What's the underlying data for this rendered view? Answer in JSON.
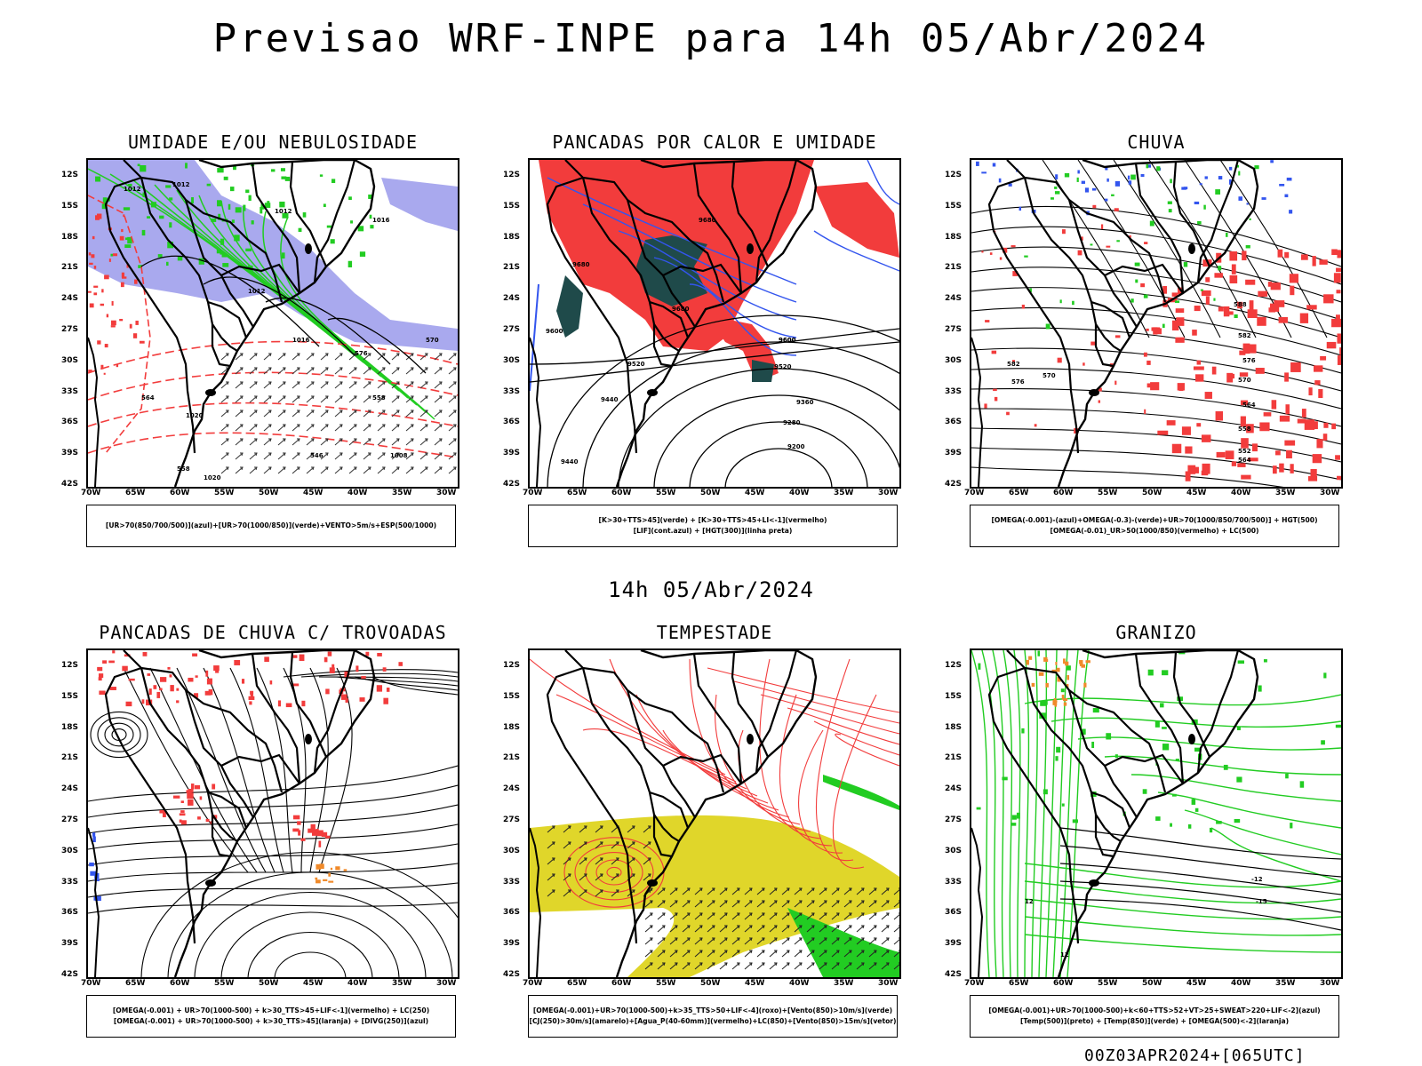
{
  "header": {
    "title": "Previsao WRF-INPE  para 14h 05/Abr/2024",
    "subtitle": "14h 05/Abr/2024",
    "footer": "00Z03APR2024+[065UTC]"
  },
  "axes": {
    "lat_labels": [
      "12S",
      "15S",
      "18S",
      "21S",
      "24S",
      "27S",
      "30S",
      "33S",
      "36S",
      "39S",
      "42S"
    ],
    "lon_labels": [
      "70W",
      "65W",
      "60W",
      "55W",
      "50W",
      "45W",
      "40W",
      "35W",
      "30W"
    ]
  },
  "panels": [
    {
      "title": "UMIDADE E/OU NEBULOSIDADE",
      "legend": [
        "[UR>70(850/700/500)](azul)+[UR>70(1000/850)](verde)+VENTO>5m/s+ESP(500/1000)"
      ],
      "contour_labels": [
        "1012",
        "1012",
        "1012",
        "1016",
        "1012",
        "1016",
        "1020",
        "1020",
        "570",
        "576",
        "564",
        "558",
        "558",
        "546",
        "1008"
      ]
    },
    {
      "title": "PANCADAS POR CALOR E UMIDADE",
      "legend": [
        "[K>30+TTS>45](verde) + [K>30+TTS>45+LI<-1](vermelho)",
        "[LIF](cont.azul) + [HGT(300)](linha preta)"
      ],
      "contour_labels": [
        "9680",
        "9680",
        "9680",
        "9600",
        "9600",
        "9520",
        "9520",
        "9440",
        "9360",
        "9280",
        "9200",
        "9440",
        "9600"
      ]
    },
    {
      "title": "CHUVA",
      "legend": [
        "[OMEGA(-0.001)-(azul)+OMEGA(-0.3)-(verde)+UR>70(1000/850/700/500)] + HGT(500)",
        "[OMEGA(-0.01)_UR>50(1000/850)(vermelho) + LC(500)"
      ],
      "contour_labels": [
        "588",
        "582",
        "576",
        "570",
        "564",
        "558",
        "552",
        "582",
        "576",
        "570",
        "564"
      ]
    },
    {
      "title": "PANCADAS DE CHUVA C/ TROVOADAS",
      "legend": [
        "[OMEGA(-0.001) + UR>70(1000-500) + k>30_TTS>45+LIF<-1](vermelho) + LC(250)",
        "[OMEGA(-0.001) + UR>70(1000-500) + k>30_TTS>45](laranja) + [DIVG(250)](azul)"
      ],
      "contour_labels": []
    },
    {
      "title": "TEMPESTADE",
      "legend": [
        "[OMEGA(-0.001)+UR>70(1000-500)+k>35_TTS>50+LIF<-4](roxo)+[Vento(850)>10m/s](verde)",
        "[CJ(250)>30m/s](amarelo)+[Agua_P(40-60mm)](vermelho)+LC(850)+[Vento(850)>15m/s](vetor)"
      ],
      "contour_labels": []
    },
    {
      "title": "GRANIZO",
      "legend": [
        "[OMEGA(-0.001)+UR>70(1000-500)+k<60+TTS>52+VT>25+SWEAT>220+LIF<-2](azul)",
        "[Temp(500)](preto) + [Temp(850)](verde) + [OMEGA(500)<-2](laranja)"
      ],
      "contour_labels": [
        "-12",
        "-15",
        "12",
        "12"
      ]
    }
  ],
  "colors": {
    "blue_fill": "#a9a9ee",
    "green": "#22cc22",
    "red": "#f23c3c",
    "dark_teal": "#1f4a4a",
    "yellow": "#e0d62a",
    "orange": "#f08a2a",
    "blue_line": "#3355ee"
  }
}
